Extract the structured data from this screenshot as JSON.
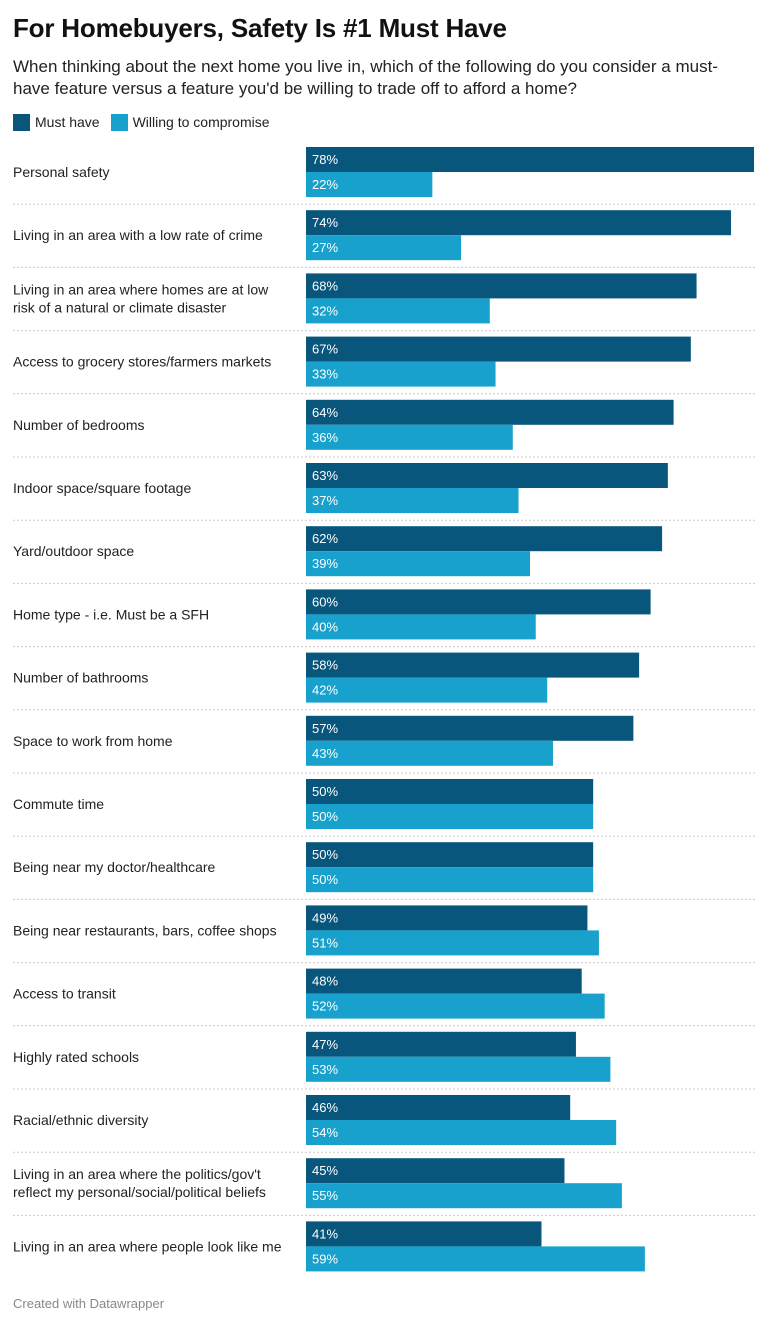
{
  "title": "For Homebuyers, Safety Is #1 Must Have",
  "subtitle": "When thinking about the next home you live in, which of the following do you consider a must-have feature versus a feature you'd be willing to trade off to afford a home?",
  "footer": "Created with Datawrapper",
  "colors": {
    "must_have": "#08567c",
    "compromise": "#18a1cd",
    "separator": "#cccccc"
  },
  "chart_data": {
    "type": "bar",
    "orientation": "horizontal",
    "title": "For Homebuyers, Safety Is #1 Must Have",
    "xlim": [
      0,
      78
    ],
    "value_suffix": "%",
    "legend_position": "top-left",
    "categories": [
      [
        "Personal safety"
      ],
      [
        "Living in an area with a low rate of crime"
      ],
      [
        "Living in an area where homes are at low",
        "risk of a natural or climate disaster"
      ],
      [
        "Access to grocery stores/farmers markets"
      ],
      [
        "Number of bedrooms"
      ],
      [
        "Indoor space/square footage"
      ],
      [
        "Yard/outdoor space"
      ],
      [
        "Home type - i.e. Must be a SFH"
      ],
      [
        "Number of bathrooms"
      ],
      [
        "Space to work from home"
      ],
      [
        "Commute time"
      ],
      [
        "Being near my doctor/healthcare"
      ],
      [
        "Being near restaurants, bars, coffee shops"
      ],
      [
        "Access to transit"
      ],
      [
        "Highly rated schools"
      ],
      [
        "Racial/ethnic diversity"
      ],
      [
        "Living in an area where the politics/gov't",
        "reflect my personal/social/political beliefs"
      ],
      [
        "Living in an area where people look like me"
      ]
    ],
    "series": [
      {
        "name": "Must have",
        "values": [
          78,
          74,
          68,
          67,
          64,
          63,
          62,
          60,
          58,
          57,
          50,
          50,
          49,
          48,
          47,
          46,
          45,
          41
        ]
      },
      {
        "name": "Willing to compromise",
        "values": [
          22,
          27,
          32,
          33,
          36,
          37,
          39,
          40,
          42,
          43,
          50,
          50,
          51,
          52,
          53,
          54,
          55,
          59
        ]
      }
    ]
  }
}
